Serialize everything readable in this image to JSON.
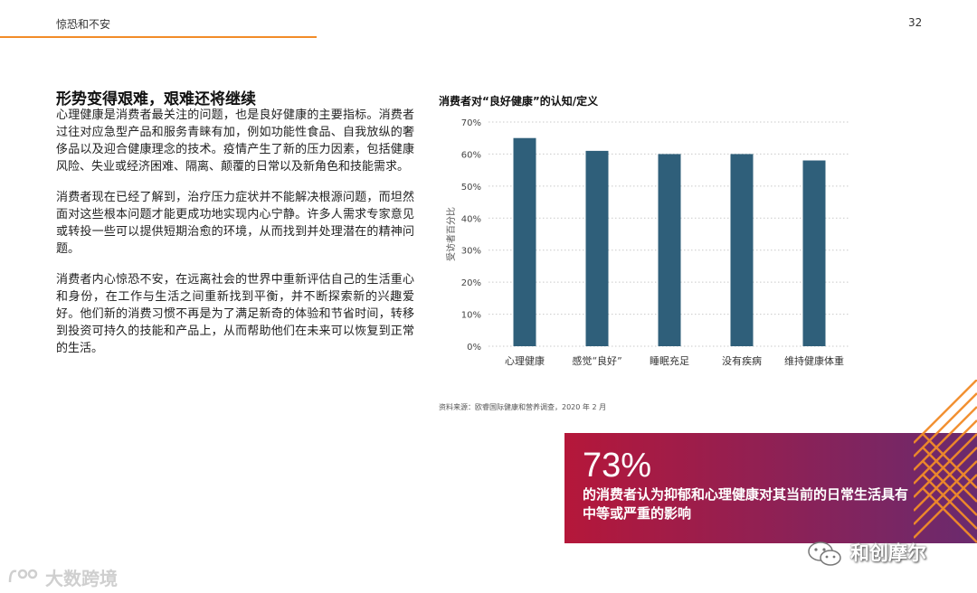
{
  "header": {
    "title": "惊恐和不安",
    "page_number": "32"
  },
  "section": {
    "title": "形势变得艰难，艰难还将继续",
    "paragraphs": [
      "心理健康是消费者最关注的问题，也是良好健康的主要指标。消费者过往对应急型产品和服务青睐有加，例如功能性食品、自我放纵的奢侈品以及迎合健康理念的技术。疫情产生了新的压力因素，包括健康风险、失业或经济困难、隔离、颠覆的日常以及新角色和技能需求。",
      "消费者现在已经了解到，治疗压力症状并不能解决根源问题，而坦然面对这些根本问题才能更成功地实现内心宁静。许多人需求专家意见或转投一些可以提供短期治愈的环境，从而找到并处理潜在的精神问题。",
      "消费者内心惊恐不安，在远离社会的世界中重新评估自己的生活重心和身份，在工作与生活之间重新找到平衡，并不断探索新的兴趣爱好。他们新的消费习惯不再是为了满足新奇的体验和节省时间，转移到投资可持久的技能和产品上，从而帮助他们在未来可以恢复到正常的生活。"
    ]
  },
  "chart_data": {
    "type": "bar",
    "title": "消费者对“良好健康”的认知/定义",
    "categories": [
      "心理健康",
      "感觉“良好”",
      "睡眠充足",
      "没有疾病",
      "维持健康体重"
    ],
    "values": [
      65,
      61,
      60,
      60,
      58
    ],
    "ylabel": "受访者百分比",
    "xlabel": "",
    "ylim": [
      0,
      70
    ],
    "yticks": [
      "0%",
      "10%",
      "20%",
      "30%",
      "40%",
      "50%",
      "60%",
      "70%"
    ],
    "bar_color": "#2f5f7a",
    "grid": true,
    "grid_style": "dotted"
  },
  "source": "资料来源：欧睿国际健康和营养调查，2020 年 2 月",
  "callout": {
    "number": "73%",
    "text": "的消费者认为抑郁和心理健康对其当前的日常生活具有中等或严重的影响",
    "gradient_start": "#b5173a",
    "gradient_end": "#6a2a6e"
  },
  "watermarks": {
    "left": "大数跨境",
    "right": "和创摩尔"
  },
  "colors": {
    "accent": "#f28c28"
  }
}
